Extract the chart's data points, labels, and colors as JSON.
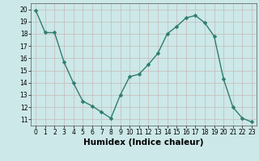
{
  "x": [
    0,
    1,
    2,
    3,
    4,
    5,
    6,
    7,
    8,
    9,
    10,
    11,
    12,
    13,
    14,
    15,
    16,
    17,
    18,
    19,
    20,
    21,
    22,
    23
  ],
  "y": [
    19.9,
    18.1,
    18.1,
    15.7,
    14.0,
    12.5,
    12.1,
    11.6,
    11.1,
    13.0,
    14.5,
    14.7,
    15.5,
    16.4,
    18.0,
    18.6,
    19.3,
    19.5,
    18.9,
    17.8,
    14.3,
    12.0,
    11.1,
    10.8
  ],
  "line_color": "#2e7d6e",
  "marker_color": "#2e7d6e",
  "bg_color": "#cce8e8",
  "grid_color": "#b8d8d8",
  "xlabel": "Humidex (Indice chaleur)",
  "ylim": [
    10.5,
    20.5
  ],
  "xlim": [
    -0.5,
    23.5
  ],
  "yticks": [
    11,
    12,
    13,
    14,
    15,
    16,
    17,
    18,
    19,
    20
  ],
  "xticks": [
    0,
    1,
    2,
    3,
    4,
    5,
    6,
    7,
    8,
    9,
    10,
    11,
    12,
    13,
    14,
    15,
    16,
    17,
    18,
    19,
    20,
    21,
    22,
    23
  ],
  "tick_fontsize": 5.5,
  "xlabel_fontsize": 7.5,
  "marker_size": 2.5,
  "line_width": 1.0
}
